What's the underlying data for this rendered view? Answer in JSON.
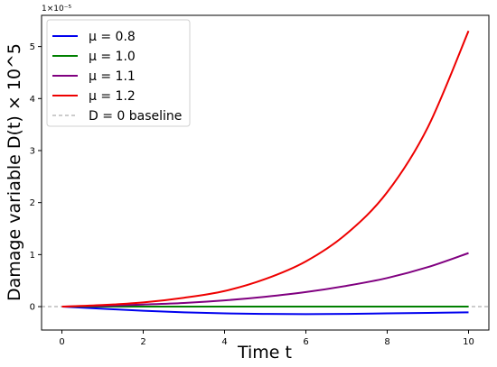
{
  "chart_data": {
    "type": "line",
    "xlabel": "Time t",
    "ylabel": "Damage variable D(t) × 10^5",
    "offset_label": "1×10⁻⁵",
    "xlim": [
      -0.5,
      10.5
    ],
    "ylim": [
      -0.45,
      5.6
    ],
    "x_ticks": [
      0,
      2,
      4,
      6,
      8,
      10
    ],
    "y_ticks": [
      0,
      1,
      2,
      3,
      4,
      5
    ],
    "grid": false,
    "legend_position": "top-left",
    "series": [
      {
        "name": "μ = 0.8",
        "color": "#0000ee",
        "x": [
          0,
          1,
          2,
          3,
          4,
          5,
          6,
          7,
          8,
          9,
          10
        ],
        "y": [
          0,
          -0.04,
          -0.08,
          -0.11,
          -0.13,
          -0.14,
          -0.145,
          -0.14,
          -0.13,
          -0.12,
          -0.11
        ]
      },
      {
        "name": "μ = 1.0",
        "color": "#008000",
        "x": [
          0,
          1,
          2,
          3,
          4,
          5,
          6,
          7,
          8,
          9,
          10
        ],
        "y": [
          0,
          0,
          0,
          0,
          0,
          0,
          0,
          0,
          0,
          0,
          0
        ]
      },
      {
        "name": "μ = 1.1",
        "color": "#800080",
        "x": [
          0,
          1,
          2,
          3,
          4,
          5,
          6,
          7,
          8,
          9,
          10
        ],
        "y": [
          0,
          0.015,
          0.04,
          0.07,
          0.12,
          0.19,
          0.28,
          0.4,
          0.55,
          0.76,
          1.03
        ]
      },
      {
        "name": "μ = 1.2",
        "color": "#ee0000",
        "x": [
          0,
          1,
          2,
          3,
          4,
          5,
          6,
          7,
          8,
          9,
          10
        ],
        "y": [
          0,
          0.03,
          0.08,
          0.17,
          0.3,
          0.53,
          0.87,
          1.4,
          2.2,
          3.45,
          5.3
        ]
      },
      {
        "name": "D = 0 baseline",
        "color": "#999999",
        "dashed": true,
        "x": [
          -0.5,
          10.5
        ],
        "y": [
          0,
          0
        ]
      }
    ]
  }
}
